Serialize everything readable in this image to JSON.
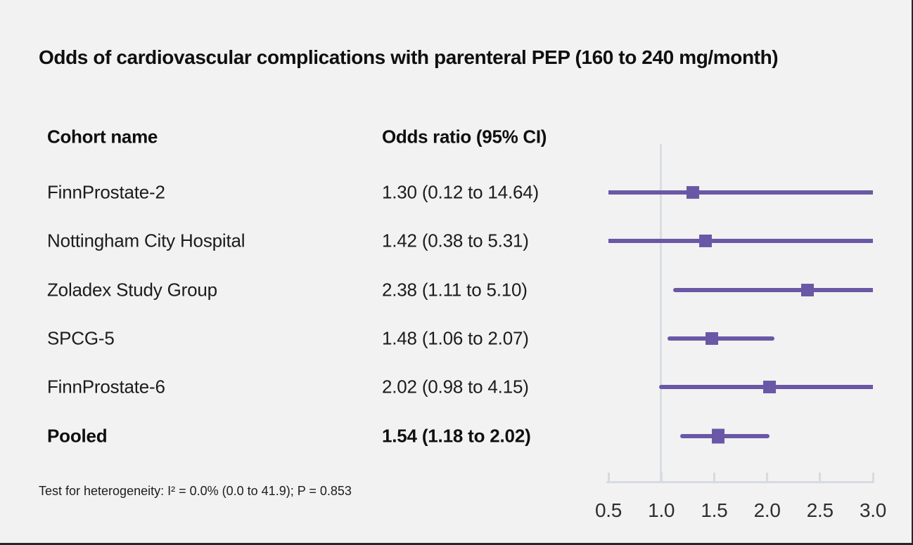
{
  "title": "Odds of cardiovascular complications with parenteral PEP (160 to 240 mg/month)",
  "table": {
    "cohort_header": "Cohort name",
    "odds_header": "Odds ratio (95% CI)"
  },
  "footnote": "Test for heterogeneity: I² = 0.0% (0.0 to 41.9); P = 0.853",
  "colors": {
    "background": "#f2f2f2",
    "marker_purple": "#6a58a6",
    "reference_line": "#d9dde4",
    "axis": "#d6dae1",
    "text": "#1a1a1a"
  },
  "chart_data": {
    "type": "scatter",
    "subtype": "forest-plot",
    "title": "Odds of cardiovascular complications with parenteral PEP (160 to 240 mg/month)",
    "x_axis": {
      "range": [
        0.5,
        3.0
      ],
      "ticks": [
        0.5,
        1.0,
        1.5,
        2.0,
        2.5,
        3.0
      ],
      "tick_labels": [
        "0.5",
        "1.0",
        "1.5",
        "2.0",
        "2.5",
        "3.0"
      ],
      "reference_value": 1.0,
      "grid": false
    },
    "columns": [
      "Cohort name",
      "Odds ratio (95% CI)"
    ],
    "studies": [
      {
        "name": "FinnProstate-2",
        "or": 1.3,
        "ci_low": 0.12,
        "ci_high": 14.64,
        "label": "1.30 (0.12 to 14.64)",
        "pooled": false
      },
      {
        "name": "Nottingham City Hospital",
        "or": 1.42,
        "ci_low": 0.38,
        "ci_high": 5.31,
        "label": "1.42 (0.38 to 5.31)",
        "pooled": false
      },
      {
        "name": "Zoladex Study Group",
        "or": 2.38,
        "ci_low": 1.11,
        "ci_high": 5.1,
        "label": "2.38 (1.11 to 5.10)",
        "pooled": false
      },
      {
        "name": "SPCG-5",
        "or": 1.48,
        "ci_low": 1.06,
        "ci_high": 2.07,
        "label": "1.48 (1.06 to 2.07)",
        "pooled": false
      },
      {
        "name": "FinnProstate-6",
        "or": 2.02,
        "ci_low": 0.98,
        "ci_high": 4.15,
        "label": "2.02 (0.98 to 4.15)",
        "pooled": false
      },
      {
        "name": "Pooled",
        "or": 1.54,
        "ci_low": 1.18,
        "ci_high": 2.02,
        "label": "1.54 (1.18 to 2.02)",
        "pooled": true
      }
    ],
    "heterogeneity_note": "Test for heterogeneity: I² = 0.0% (0.0 to 41.9); P = 0.853"
  }
}
